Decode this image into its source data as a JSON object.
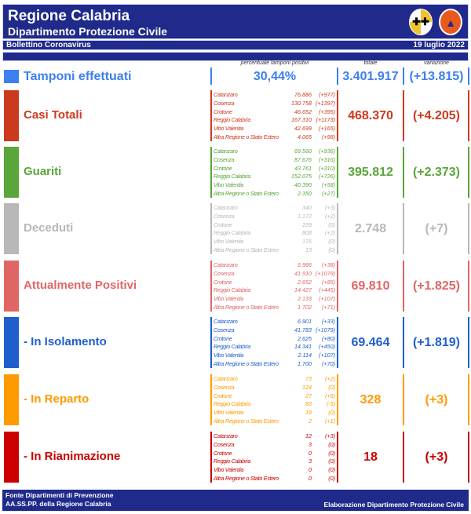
{
  "header": {
    "title": "Regione Calabria",
    "subtitle": "Dipartimento Protezione Civile",
    "bulletin": "Bollettino Coronavirus",
    "date": "19 luglio 2022"
  },
  "columns": {
    "percent": "percentuale tamponi positivi",
    "total": "totale",
    "change": "variazione"
  },
  "tamponi": {
    "label": "Tamponi effettuati",
    "percent": "30,44%",
    "total": "3.401.917",
    "change": "(+13.815)",
    "color": "#3d7ff0"
  },
  "sections": [
    {
      "label": "Casi Totali",
      "total": "468.370",
      "change": "(+4.205)",
      "color": "#cc3a1e",
      "rows": [
        [
          "Catanzaro",
          "76.886",
          "(+977)"
        ],
        [
          "Cosenza",
          "130.758",
          "(+1397)"
        ],
        [
          "Crotone",
          "46.652",
          "(+395)"
        ],
        [
          "Reggio Calabria",
          "167.310",
          "(+1173)"
        ],
        [
          "Vibo Valentia",
          "42.699",
          "(+165)"
        ],
        [
          "Altra Regione o Stato Estero",
          "4.065",
          "(+98)"
        ]
      ]
    },
    {
      "label": "Guariti",
      "total": "395.812",
      "change": "(+2.373)",
      "color": "#5aa63a",
      "rows": [
        [
          "Catanzaro",
          "69.560",
          "(+936)"
        ],
        [
          "Cosenza",
          "87.676",
          "(+316)"
        ],
        [
          "Crotone",
          "43.761",
          "(+310)"
        ],
        [
          "Reggio Calabria",
          "152.075",
          "(+726)"
        ],
        [
          "Vibo Valentia",
          "40.390",
          "(+58)"
        ],
        [
          "Altra Regione o Stato Estero",
          "2.350",
          "(+27)"
        ]
      ]
    },
    {
      "label": "Deceduti",
      "total": "2.748",
      "change": "(+7)",
      "color": "#b8b8b8",
      "rows": [
        [
          "Catanzaro",
          "340",
          "(+3)"
        ],
        [
          "Cosenza",
          "1.172",
          "(+2)"
        ],
        [
          "Crotone",
          "239",
          "(0)"
        ],
        [
          "Reggio Calabria",
          "808",
          "(+2)"
        ],
        [
          "Vibo Valentia",
          "176",
          "(0)"
        ],
        [
          "Altra Regione o Stato Estero",
          "13",
          "(0)"
        ]
      ]
    },
    {
      "label": "Attualmente Positivi",
      "total": "69.810",
      "change": "(+1.825)",
      "color": "#e06666",
      "rows": [
        [
          "Catanzaro",
          "6.986",
          "(+38)"
        ],
        [
          "Cosenza",
          "41.910",
          "(+1079)"
        ],
        [
          "Crotone",
          "2.652",
          "(+85)"
        ],
        [
          "Reggio Calabria",
          "14.427",
          "(+445)"
        ],
        [
          "Vibo Valentia",
          "2.133",
          "(+107)"
        ],
        [
          "Altra Regione o Stato Estero",
          "1.702",
          "(+71)"
        ]
      ]
    },
    {
      "label": " - In Isolamento",
      "total": "69.464",
      "change": "(+1.819)",
      "color": "#1f5fcc",
      "rows": [
        [
          "Catanzaro",
          "6.901",
          "(+33)"
        ],
        [
          "Cosenza",
          "41.783",
          "(+1079)"
        ],
        [
          "Crotone",
          "2.625",
          "(+80)"
        ],
        [
          "Reggio Calabria",
          "14.341",
          "(+450)"
        ],
        [
          "Vibo Valentia",
          "2.114",
          "(+107)"
        ],
        [
          "Altra Regione o Stato Estero",
          "1.700",
          "(+70)"
        ]
      ]
    },
    {
      "label": " - In Reparto",
      "total": "328",
      "change": "(+3)",
      "color": "#ff9a00",
      "rows": [
        [
          "Catanzaro",
          "73",
          "(+2)"
        ],
        [
          "Cosenza",
          "124",
          "(0)"
        ],
        [
          "Crotone",
          "27",
          "(+5)"
        ],
        [
          "Reggio Calabria",
          "83",
          "(-5)"
        ],
        [
          "Vibo Valentia",
          "19",
          "(0)"
        ],
        [
          "Altra Regione o Stato Estero",
          "2",
          "(+1)"
        ]
      ]
    },
    {
      "label": " - In Rianimazione",
      "total": "18",
      "change": "(+3)",
      "color": "#cc0000",
      "rows": [
        [
          "Catanzaro",
          "12",
          "(+3)"
        ],
        [
          "Cosenza",
          "3",
          "(0)"
        ],
        [
          "Crotone",
          "0",
          "(0)"
        ],
        [
          "Reggio Calabria",
          "3",
          "(0)"
        ],
        [
          "Vibo Valentia",
          "0",
          "(0)"
        ],
        [
          "Altra Regione o Stato Estero",
          "0",
          "(0)"
        ]
      ]
    }
  ],
  "footer": {
    "line1": "Fonte Dipartimenti di Prevenzione",
    "line2": "AA.SS.PP.  della Regione Calabria",
    "right": "Elaborazione Dipartimento Protezione Civile"
  }
}
